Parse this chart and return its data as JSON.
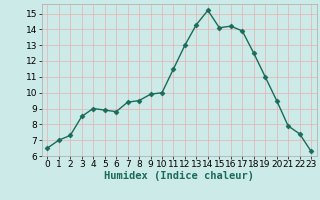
{
  "x": [
    0,
    1,
    2,
    3,
    4,
    5,
    6,
    7,
    8,
    9,
    10,
    11,
    12,
    13,
    14,
    15,
    16,
    17,
    18,
    19,
    20,
    21,
    22,
    23
  ],
  "y": [
    6.5,
    7.0,
    7.3,
    8.5,
    9.0,
    8.9,
    8.8,
    9.4,
    9.5,
    9.9,
    10.0,
    11.5,
    13.0,
    14.3,
    15.2,
    14.1,
    14.2,
    13.9,
    12.5,
    11.0,
    9.5,
    7.9,
    7.4,
    6.3
  ],
  "line_color": "#1a6b5a",
  "marker": "D",
  "markersize": 2.5,
  "linewidth": 1.0,
  "bg_color": "#cceae7",
  "grid_color": "#e8b0b0",
  "xlabel": "Humidex (Indice chaleur)",
  "xlabel_fontsize": 7.5,
  "tick_fontsize": 6.5,
  "xlim": [
    -0.5,
    23.5
  ],
  "ylim": [
    6,
    15.6
  ],
  "yticks": [
    6,
    7,
    8,
    9,
    10,
    11,
    12,
    13,
    14,
    15
  ],
  "xticks": [
    0,
    1,
    2,
    3,
    4,
    5,
    6,
    7,
    8,
    9,
    10,
    11,
    12,
    13,
    14,
    15,
    16,
    17,
    18,
    19,
    20,
    21,
    22,
    23
  ]
}
